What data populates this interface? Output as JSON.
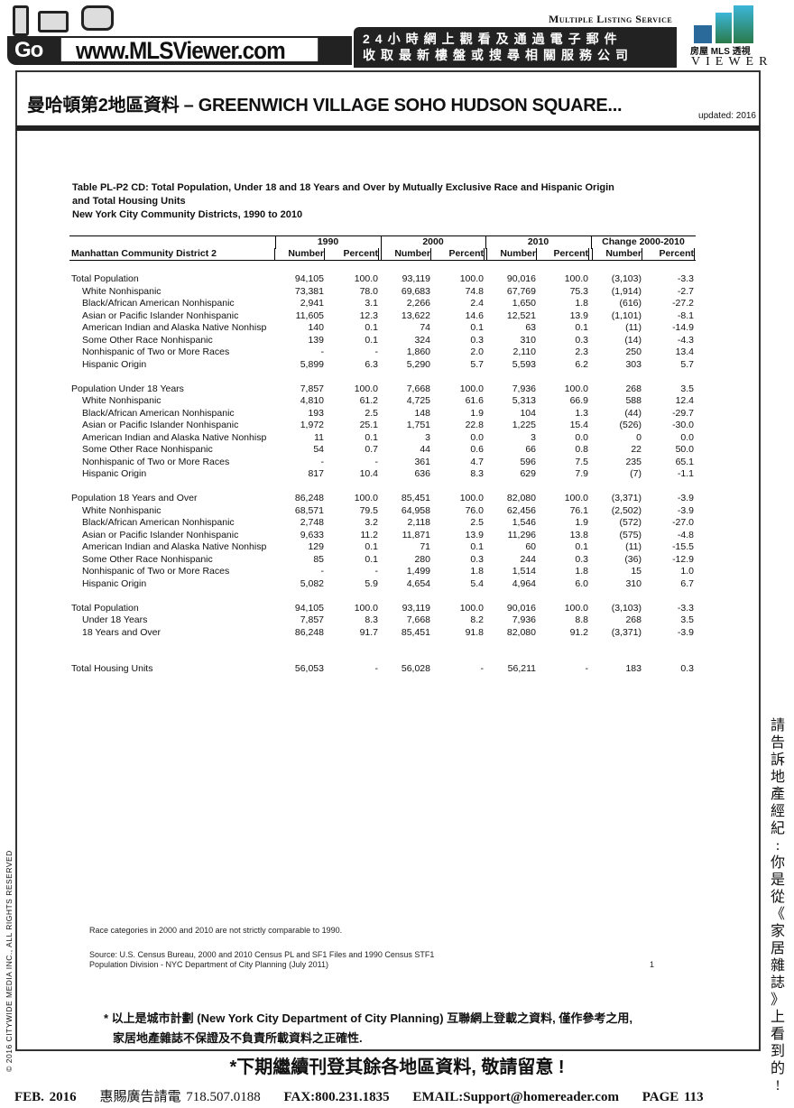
{
  "header": {
    "go": "Go",
    "url": "www.MLSViewer.com",
    "slogan_line1": "24小時網上觀看及通過電子郵件",
    "slogan_line2": "收取最新樓盤或搜尋相關服務公司",
    "mls_label": "Multiple Listing Service",
    "logo_text": "房屋 MLS 透視",
    "logo_viewer": "VIEWER"
  },
  "page": {
    "title": "曼哈頓第2地區資料 – GREENWICH VILLAGE SOHO HUDSON SQUARE...",
    "updated": "updated: 2016"
  },
  "table": {
    "caption1": "Table PL-P2 CD:  Total Population, Under 18 and 18 Years and Over by Mutually Exclusive Race and Hispanic Origin",
    "caption2": "and Total Housing Units",
    "caption3": "New York City Community Districts, 1990 to 2010",
    "district": "Manhattan Community District 2",
    "groups": [
      "1990",
      "2000",
      "2010",
      "Change 2000-2010"
    ],
    "subheaders": [
      "Number",
      "Percent",
      "Number",
      "Percent",
      "Number",
      "Percent",
      "Number",
      "Percent"
    ],
    "rows": [
      {
        "label": "Total Population",
        "indent": false,
        "values": [
          "94,105",
          "100.0",
          "93,119",
          "100.0",
          "90,016",
          "100.0",
          "(3,103)",
          "-3.3"
        ]
      },
      {
        "label": "White Nonhispanic",
        "indent": true,
        "values": [
          "73,381",
          "78.0",
          "69,683",
          "74.8",
          "67,769",
          "75.3",
          "(1,914)",
          "-2.7"
        ]
      },
      {
        "label": "Black/African American Nonhispanic",
        "indent": true,
        "values": [
          "2,941",
          "3.1",
          "2,266",
          "2.4",
          "1,650",
          "1.8",
          "(616)",
          "-27.2"
        ]
      },
      {
        "label": "Asian or Pacific Islander Nonhispanic",
        "indent": true,
        "values": [
          "11,605",
          "12.3",
          "13,622",
          "14.6",
          "12,521",
          "13.9",
          "(1,101)",
          "-8.1"
        ]
      },
      {
        "label": "American Indian and Alaska Native Nonhisp",
        "indent": true,
        "values": [
          "140",
          "0.1",
          "74",
          "0.1",
          "63",
          "0.1",
          "(11)",
          "-14.9"
        ]
      },
      {
        "label": "Some Other Race Nonhispanic",
        "indent": true,
        "values": [
          "139",
          "0.1",
          "324",
          "0.3",
          "310",
          "0.3",
          "(14)",
          "-4.3"
        ]
      },
      {
        "label": "Nonhispanic of Two or More Races",
        "indent": true,
        "values": [
          "-",
          "-",
          "1,860",
          "2.0",
          "2,110",
          "2.3",
          "250",
          "13.4"
        ]
      },
      {
        "label": "Hispanic Origin",
        "indent": true,
        "values": [
          "5,899",
          "6.3",
          "5,290",
          "5.7",
          "5,593",
          "6.2",
          "303",
          "5.7"
        ]
      },
      {
        "blank": true
      },
      {
        "label": "Population Under 18 Years",
        "indent": false,
        "values": [
          "7,857",
          "100.0",
          "7,668",
          "100.0",
          "7,936",
          "100.0",
          "268",
          "3.5"
        ]
      },
      {
        "label": "White Nonhispanic",
        "indent": true,
        "values": [
          "4,810",
          "61.2",
          "4,725",
          "61.6",
          "5,313",
          "66.9",
          "588",
          "12.4"
        ]
      },
      {
        "label": "Black/African American Nonhispanic",
        "indent": true,
        "values": [
          "193",
          "2.5",
          "148",
          "1.9",
          "104",
          "1.3",
          "(44)",
          "-29.7"
        ]
      },
      {
        "label": "Asian or Pacific Islander Nonhispanic",
        "indent": true,
        "values": [
          "1,972",
          "25.1",
          "1,751",
          "22.8",
          "1,225",
          "15.4",
          "(526)",
          "-30.0"
        ]
      },
      {
        "label": "American Indian and Alaska Native Nonhisp",
        "indent": true,
        "values": [
          "11",
          "0.1",
          "3",
          "0.0",
          "3",
          "0.0",
          "0",
          "0.0"
        ]
      },
      {
        "label": "Some Other Race Nonhispanic",
        "indent": true,
        "values": [
          "54",
          "0.7",
          "44",
          "0.6",
          "66",
          "0.8",
          "22",
          "50.0"
        ]
      },
      {
        "label": "Nonhispanic of Two or More Races",
        "indent": true,
        "values": [
          "-",
          "-",
          "361",
          "4.7",
          "596",
          "7.5",
          "235",
          "65.1"
        ]
      },
      {
        "label": "Hispanic Origin",
        "indent": true,
        "values": [
          "817",
          "10.4",
          "636",
          "8.3",
          "629",
          "7.9",
          "(7)",
          "-1.1"
        ]
      },
      {
        "blank": true
      },
      {
        "label": "Population 18 Years and Over",
        "indent": false,
        "values": [
          "86,248",
          "100.0",
          "85,451",
          "100.0",
          "82,080",
          "100.0",
          "(3,371)",
          "-3.9"
        ]
      },
      {
        "label": "White Nonhispanic",
        "indent": true,
        "values": [
          "68,571",
          "79.5",
          "64,958",
          "76.0",
          "62,456",
          "76.1",
          "(2,502)",
          "-3.9"
        ]
      },
      {
        "label": "Black/African American Nonhispanic",
        "indent": true,
        "values": [
          "2,748",
          "3.2",
          "2,118",
          "2.5",
          "1,546",
          "1.9",
          "(572)",
          "-27.0"
        ]
      },
      {
        "label": "Asian or Pacific Islander Nonhispanic",
        "indent": true,
        "values": [
          "9,633",
          "11.2",
          "11,871",
          "13.9",
          "11,296",
          "13.8",
          "(575)",
          "-4.8"
        ]
      },
      {
        "label": "American Indian and Alaska Native Nonhisp",
        "indent": true,
        "values": [
          "129",
          "0.1",
          "71",
          "0.1",
          "60",
          "0.1",
          "(11)",
          "-15.5"
        ]
      },
      {
        "label": "Some Other Race Nonhispanic",
        "indent": true,
        "values": [
          "85",
          "0.1",
          "280",
          "0.3",
          "244",
          "0.3",
          "(36)",
          "-12.9"
        ]
      },
      {
        "label": "Nonhispanic of Two or More Races",
        "indent": true,
        "values": [
          "-",
          "-",
          "1,499",
          "1.8",
          "1,514",
          "1.8",
          "15",
          "1.0"
        ]
      },
      {
        "label": "Hispanic Origin",
        "indent": true,
        "values": [
          "5,082",
          "5.9",
          "4,654",
          "5.4",
          "4,964",
          "6.0",
          "310",
          "6.7"
        ]
      },
      {
        "blank": true
      },
      {
        "label": "Total Population",
        "indent": false,
        "values": [
          "94,105",
          "100.0",
          "93,119",
          "100.0",
          "90,016",
          "100.0",
          "(3,103)",
          "-3.3"
        ]
      },
      {
        "label": "Under 18 Years",
        "indent": true,
        "values": [
          "7,857",
          "8.3",
          "7,668",
          "8.2",
          "7,936",
          "8.8",
          "268",
          "3.5"
        ]
      },
      {
        "label": "18 Years and Over",
        "indent": true,
        "values": [
          "86,248",
          "91.7",
          "85,451",
          "91.8",
          "82,080",
          "91.2",
          "(3,371)",
          "-3.9"
        ]
      },
      {
        "blank": true
      },
      {
        "blank": true
      },
      {
        "label": "Total Housing Units",
        "indent": false,
        "values": [
          "56,053",
          "-",
          "56,028",
          "-",
          "56,211",
          "-",
          "183",
          "0.3"
        ]
      }
    ]
  },
  "notes": {
    "race": "Race categories in 2000 and 2010 are not strictly comparable to 1990.",
    "source": "Source:  U.S. Census Bureau, 2000 and 2010 Census PL and SF1 Files and 1990 Census STF1",
    "division": "Population Division - NYC Department of City Planning (July 2011)",
    "page_num": "1"
  },
  "disclaimer": {
    "line1": "* 以上是城市計劃 (New York City Department of City Planning) 互聯網上登載之資料, 僅作參考之用,",
    "line2": "家居地產雜誌不保證及不負責所載資料之正確性.",
    "next": "*下期繼續刊登其餘各地區資料, 敬請留意 !"
  },
  "side_text": "請告訴地產經紀: 你是從《家居雜誌》上看到的!",
  "copyright": "© 2016 CITYWIDE MEDIA INC., ALL RIGHTS RESERVED",
  "footer": {
    "date": "FEB. 2016",
    "ad": "惠賜廣告請電 718.507.0188",
    "fax": "FAX:800.231.1835",
    "email": "EMAIL:Support@homereader.com",
    "page": "PAGE 113"
  }
}
